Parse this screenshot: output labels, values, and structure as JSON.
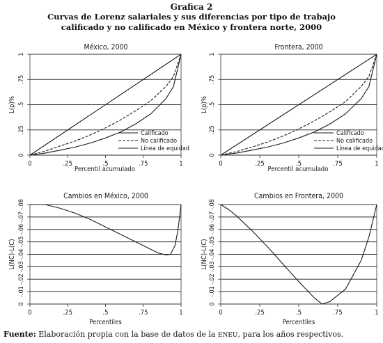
{
  "figure": {
    "kicker": "Grafica 2",
    "title_line1": "Curvas de Lorenz salariales y sus diferencias por tipo de trabajo",
    "title_line2": "calificado y no calificado en México y frontera norte, 2000",
    "source_label": "Fuente:",
    "source_pre": "Elaboración propia con la base de datos de la",
    "source_acronym": "ENEU",
    "source_post": ", para los años respectivos."
  },
  "colors": {
    "line": "#1a1a1a",
    "frame": "#333333",
    "grid": "#2a2a2a",
    "background": "#ffffff"
  },
  "chart_data": [
    {
      "type": "line",
      "title": "México, 2000",
      "xlabel": "Percentil acumulado",
      "ylabel": "L(p)%",
      "xlim": [
        0,
        1
      ],
      "ylim": [
        0,
        1
      ],
      "xticks": [
        "0",
        ".25",
        ".5",
        ".75",
        "1"
      ],
      "yticks": [
        "0",
        ".25",
        ".5",
        ".75",
        "1"
      ],
      "grid": true,
      "legend_position": "bottom-right",
      "series": [
        {
          "name": "Calificado",
          "style": "solid",
          "x": [
            0,
            0.1,
            0.2,
            0.3,
            0.4,
            0.5,
            0.6,
            0.7,
            0.8,
            0.9,
            0.95,
            1
          ],
          "y": [
            0,
            0.02,
            0.05,
            0.08,
            0.12,
            0.17,
            0.23,
            0.31,
            0.41,
            0.56,
            0.68,
            1
          ]
        },
        {
          "name": "No calificado",
          "style": "dash",
          "x": [
            0,
            0.1,
            0.2,
            0.3,
            0.4,
            0.5,
            0.6,
            0.7,
            0.8,
            0.9,
            0.95,
            1
          ],
          "y": [
            0,
            0.04,
            0.09,
            0.14,
            0.2,
            0.27,
            0.35,
            0.44,
            0.54,
            0.68,
            0.78,
            1
          ]
        },
        {
          "name": "Línea de equidad",
          "style": "solid",
          "x": [
            0,
            1
          ],
          "y": [
            0,
            1
          ]
        }
      ]
    },
    {
      "type": "line",
      "title": "Frontera, 2000",
      "xlabel": "Percentil acumulado",
      "ylabel": "L(p)%",
      "xlim": [
        0,
        1
      ],
      "ylim": [
        0,
        1
      ],
      "xticks": [
        "0",
        ".25",
        ".5",
        ".75",
        "1"
      ],
      "yticks": [
        "0",
        ".25",
        ".5",
        ".75",
        "1"
      ],
      "grid": true,
      "legend_position": "bottom-right",
      "series": [
        {
          "name": "Calificado",
          "style": "solid",
          "x": [
            0,
            0.1,
            0.2,
            0.3,
            0.4,
            0.5,
            0.6,
            0.7,
            0.8,
            0.9,
            0.95,
            1
          ],
          "y": [
            0,
            0.02,
            0.05,
            0.08,
            0.12,
            0.17,
            0.23,
            0.31,
            0.41,
            0.56,
            0.68,
            1
          ]
        },
        {
          "name": "No calificado",
          "style": "dash",
          "x": [
            0,
            0.1,
            0.2,
            0.3,
            0.4,
            0.5,
            0.6,
            0.7,
            0.8,
            0.9,
            0.95,
            1
          ],
          "y": [
            0,
            0.035,
            0.08,
            0.13,
            0.19,
            0.26,
            0.34,
            0.43,
            0.53,
            0.68,
            0.78,
            1
          ]
        },
        {
          "name": "Línea de equidad",
          "style": "solid",
          "x": [
            0,
            1
          ],
          "y": [
            0,
            1
          ]
        }
      ]
    },
    {
      "type": "line",
      "title": "Cambios en México, 2000",
      "xlabel": "Percentiles",
      "ylabel": "L(NC)-L(C)",
      "xlim": [
        0,
        1
      ],
      "ylim": [
        -0.08,
        0
      ],
      "xticks": [
        "0",
        ".25",
        ".5",
        ".75",
        "1"
      ],
      "yticks": [
        "0",
        "-.01",
        "-.02",
        "-.03",
        "-.04",
        "-.05",
        "-.06",
        "-.07",
        "-.08"
      ],
      "grid": true,
      "series": [
        {
          "name": "",
          "style": "solid",
          "x": [
            0,
            0.05,
            0.1,
            0.2,
            0.3,
            0.4,
            0.5,
            0.6,
            0.7,
            0.8,
            0.85,
            0.9,
            0.93,
            0.96,
            0.98,
            1
          ],
          "y": [
            0,
            0,
            0,
            -0.003,
            -0.007,
            -0.012,
            -0.018,
            -0.024,
            -0.03,
            -0.036,
            -0.039,
            -0.0405,
            -0.04,
            -0.033,
            -0.02,
            0
          ]
        }
      ]
    },
    {
      "type": "line",
      "title": "Cambios en Frontera, 2000",
      "xlabel": "Percentiles",
      "ylabel": "L(NC)-L(C)",
      "xlim": [
        0,
        1
      ],
      "ylim": [
        -0.08,
        0
      ],
      "xticks": [
        "0",
        ".25",
        ".5",
        ".75",
        "1"
      ],
      "yticks": [
        "0",
        "-.01",
        "-.02",
        "-.03",
        "-.04",
        "-.05",
        "-.06",
        "-.07",
        "-.08"
      ],
      "grid": true,
      "series": [
        {
          "name": "",
          "style": "solid",
          "x": [
            0,
            0.05,
            0.1,
            0.2,
            0.3,
            0.4,
            0.5,
            0.6,
            0.65,
            0.7,
            0.8,
            0.9,
            0.95,
            1
          ],
          "y": [
            0,
            -0.004,
            -0.009,
            -0.021,
            -0.034,
            -0.048,
            -0.062,
            -0.075,
            -0.08,
            -0.078,
            -0.068,
            -0.045,
            -0.026,
            0
          ]
        }
      ]
    }
  ]
}
